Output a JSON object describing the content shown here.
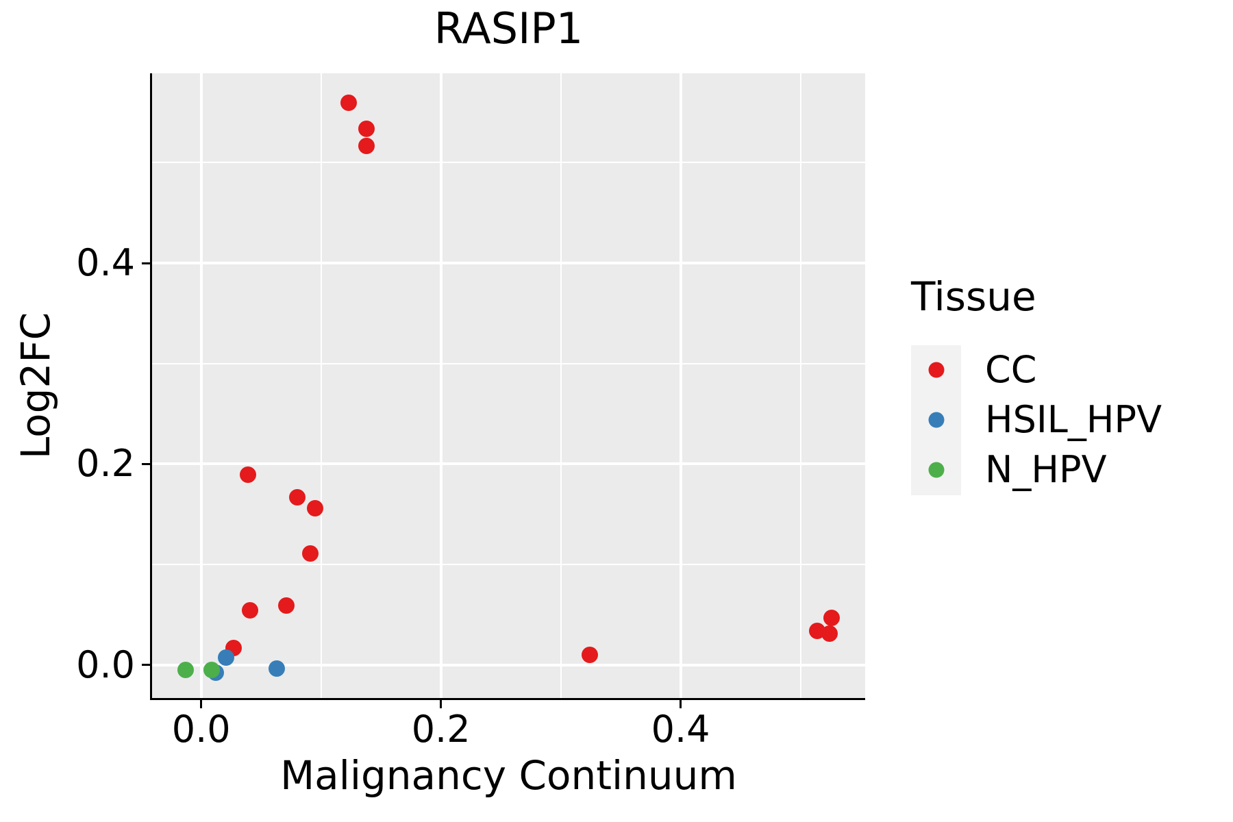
{
  "chart_data": {
    "type": "scatter",
    "title": "RASIP1",
    "xlabel": "Malignancy Continuum",
    "ylabel": "Log2FC",
    "xlim": [
      -0.041,
      0.554
    ],
    "ylim": [
      -0.033,
      0.589
    ],
    "grid": "white major and minor gridlines on gray panel",
    "panel_background": "#EBEBEB",
    "gridline_color": "#FFFFFF",
    "axis_line_color": "#000000",
    "x_major_ticks": [
      {
        "value": 0.0,
        "label": "0.0"
      },
      {
        "value": 0.2,
        "label": "0.2"
      },
      {
        "value": 0.4,
        "label": "0.4"
      }
    ],
    "y_major_ticks": [
      {
        "value": 0.0,
        "label": "0.0"
      },
      {
        "value": 0.2,
        "label": "0.2"
      },
      {
        "value": 0.4,
        "label": "0.4"
      }
    ],
    "x_minor_gridlines": [
      0.1,
      0.3,
      0.5
    ],
    "y_minor_gridlines": [
      0.1,
      0.3,
      0.5
    ],
    "legend": {
      "title": "Tissue",
      "position": "right",
      "key_background": "#F2F2F2",
      "entries": [
        "CC",
        "HSIL_HPV",
        "N_HPV"
      ]
    },
    "series": [
      {
        "name": "CC",
        "color": "#E41A1C",
        "points": [
          [
            0.123,
            0.56
          ],
          [
            0.138,
            0.534
          ],
          [
            0.138,
            0.517
          ],
          [
            0.039,
            0.189
          ],
          [
            0.08,
            0.167
          ],
          [
            0.095,
            0.156
          ],
          [
            0.091,
            0.111
          ],
          [
            0.041,
            0.054
          ],
          [
            0.071,
            0.059
          ],
          [
            0.027,
            0.017
          ],
          [
            0.324,
            0.01
          ],
          [
            0.514,
            0.034
          ],
          [
            0.524,
            0.031
          ],
          [
            0.526,
            0.047
          ]
        ]
      },
      {
        "name": "HSIL_HPV",
        "color": "#377EB8",
        "points": [
          [
            0.021,
            0.007
          ],
          [
            0.012,
            -0.008
          ],
          [
            0.063,
            -0.004
          ]
        ]
      },
      {
        "name": "N_HPV",
        "color": "#4DAF4A",
        "points": [
          [
            -0.013,
            -0.005
          ],
          [
            0.009,
            -0.005
          ]
        ]
      }
    ]
  }
}
